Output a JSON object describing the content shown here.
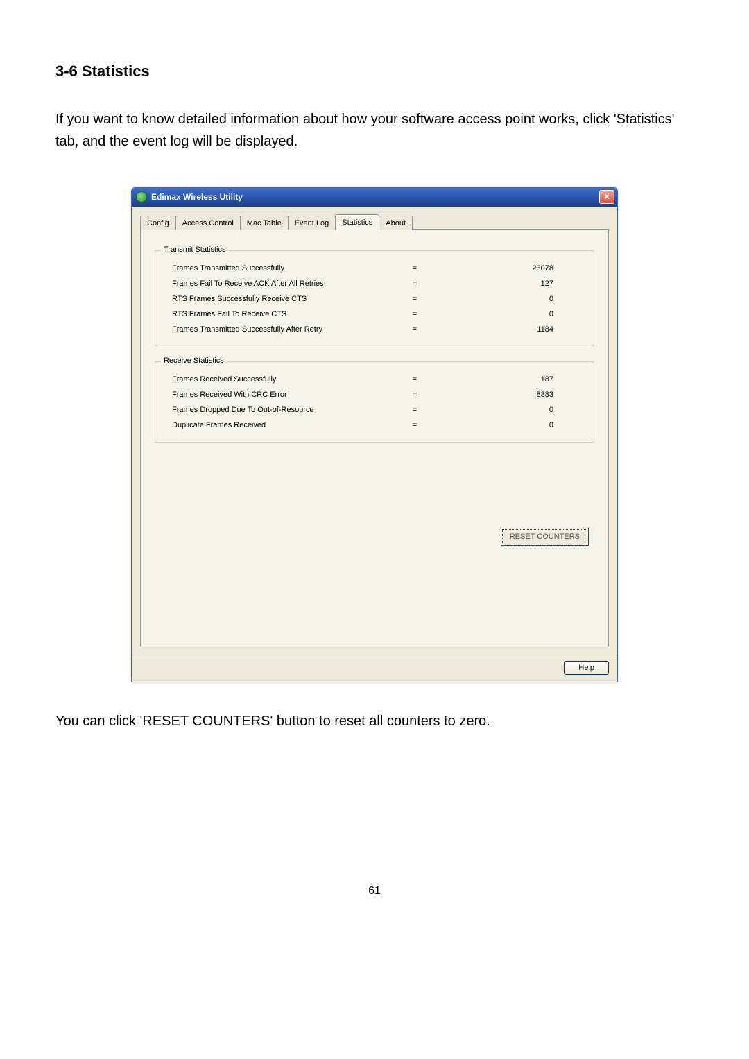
{
  "doc": {
    "section_heading": "3-6 Statistics",
    "intro": "If you want to know detailed information about how your software access point works, click 'Statistics' tab, and the event log will be displayed.",
    "footer_text": "You can click 'RESET COUNTERS' button to reset all counters to zero.",
    "page_number": "61"
  },
  "window": {
    "title": "Edimax Wireless Utility",
    "close_label": "X",
    "tabs": {
      "t0": "Config",
      "t1": "Access Control",
      "t2": "Mac Table",
      "t3": "Event Log",
      "t4": "Statistics",
      "t5": "About"
    },
    "transmit": {
      "legend": "Transmit Statistics",
      "rows": {
        "r0": {
          "label": "Frames Transmitted Successfully",
          "eq": "=",
          "val": "23078"
        },
        "r1": {
          "label": "Frames Fail To Receive ACK After All Retries",
          "eq": "=",
          "val": "127"
        },
        "r2": {
          "label": "RTS Frames Successfully Receive CTS",
          "eq": "=",
          "val": "0"
        },
        "r3": {
          "label": "RTS Frames Fail To Receive CTS",
          "eq": "=",
          "val": "0"
        },
        "r4": {
          "label": "Frames Transmitted Successfully After Retry",
          "eq": "=",
          "val": "1184"
        }
      }
    },
    "receive": {
      "legend": "Receive Statistics",
      "rows": {
        "r0": {
          "label": "Frames Received Successfully",
          "eq": "=",
          "val": "187"
        },
        "r1": {
          "label": "Frames Received With CRC Error",
          "eq": "=",
          "val": "8383"
        },
        "r2": {
          "label": "Frames Dropped Due To Out-of-Resource",
          "eq": "=",
          "val": "0"
        },
        "r3": {
          "label": "Duplicate Frames Received",
          "eq": "=",
          "val": "0"
        }
      }
    },
    "reset_button": "RESET COUNTERS",
    "help_button": "Help"
  }
}
